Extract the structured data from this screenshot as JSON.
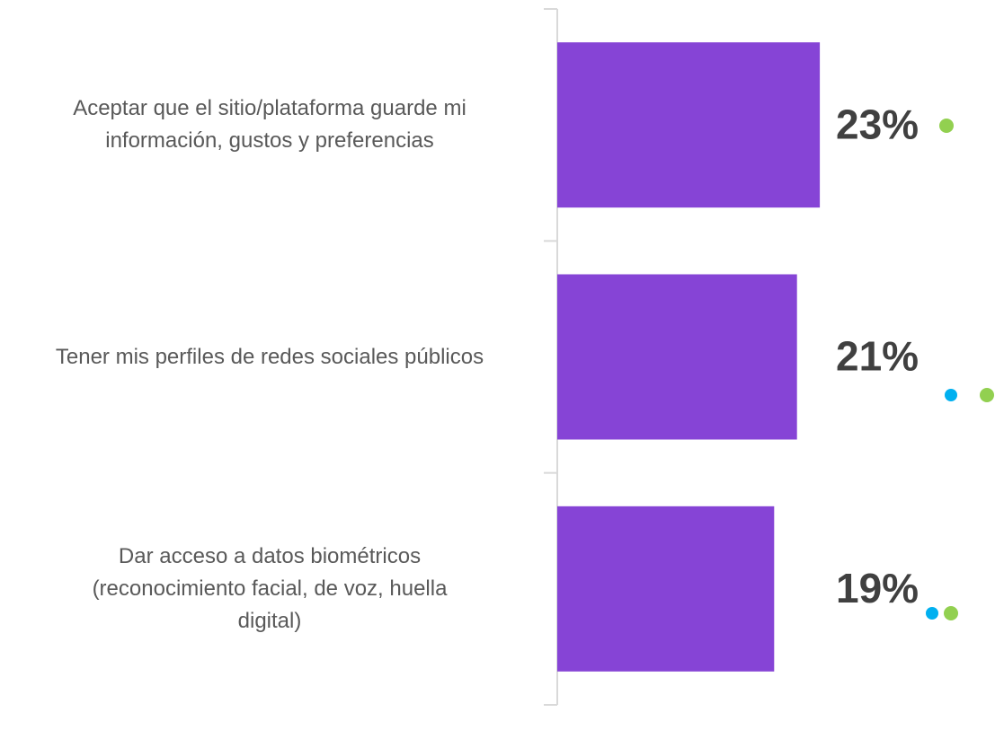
{
  "chart_data": {
    "type": "hbar",
    "categories": [
      "Aceptar que el sitio/plataforma guarde mi\ninformación, gustos y preferencias",
      "Tener mis perfiles de redes sociales públicos",
      "Dar acceso a datos biométricos\n(reconocimiento facial, de voz, huella\ndigital)"
    ],
    "values": [
      23,
      21,
      19
    ],
    "value_labels": [
      "23%",
      "21%",
      "19%"
    ],
    "color": "#8644d6"
  }
}
